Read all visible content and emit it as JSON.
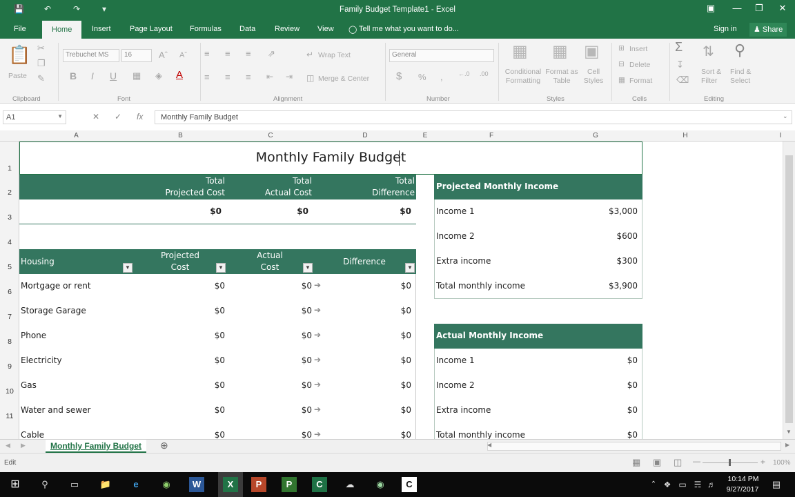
{
  "window": {
    "title": "Family Budget Template1 - Excel"
  },
  "ribbon_tabs": [
    "File",
    "Home",
    "Insert",
    "Page Layout",
    "Formulas",
    "Data",
    "Review",
    "View"
  ],
  "tell_me": "Tell me what you want to do...",
  "account": {
    "sign_in": "Sign in",
    "share": "Share"
  },
  "ribbon": {
    "paste": "Paste",
    "font_name": "Trebuchet MS",
    "font_size": "16",
    "wrap_text": "Wrap Text",
    "merge_center": "Merge & Center",
    "number_format": "General",
    "conditional_formatting": [
      "Conditional",
      "Formatting"
    ],
    "format_as_table": [
      "Format as",
      "Table"
    ],
    "cell_styles": [
      "Cell",
      "Styles"
    ],
    "insert": "Insert",
    "delete": "Delete",
    "format": "Format",
    "sort_filter": [
      "Sort &",
      "Filter"
    ],
    "find_select": [
      "Find &",
      "Select"
    ],
    "groups": {
      "clipboard": "Clipboard",
      "font": "Font",
      "alignment": "Alignment",
      "number": "Number",
      "styles": "Styles",
      "cells": "Cells",
      "editing": "Editing"
    }
  },
  "formula_bar": {
    "name_box": "A1",
    "content": "Monthly Family Budget"
  },
  "columns": [
    "A",
    "B",
    "C",
    "D",
    "E",
    "F",
    "G",
    "H",
    "I"
  ],
  "rows": [
    "1",
    "2",
    "3",
    "4",
    "5",
    "6",
    "7",
    "8",
    "9",
    "10",
    "11"
  ],
  "sheet": {
    "title": "Monthly Family Budget",
    "totals_headers": [
      [
        "Total",
        "Projected Cost"
      ],
      [
        "Total",
        "Actual Cost"
      ],
      [
        "Total",
        "Difference"
      ]
    ],
    "totals_values": [
      "$0",
      "$0",
      "$0"
    ],
    "housing_headers": {
      "category": "Housing",
      "projected": [
        "Projected",
        "Cost"
      ],
      "actual": [
        "Actual",
        "Cost"
      ],
      "difference": "Difference"
    },
    "housing_rows": [
      {
        "item": "Mortgage or rent",
        "projected": "$0",
        "actual": "$0",
        "difference": "$0"
      },
      {
        "item": "Storage Garage",
        "projected": "$0",
        "actual": "$0",
        "difference": "$0"
      },
      {
        "item": "Phone",
        "projected": "$0",
        "actual": "$0",
        "difference": "$0"
      },
      {
        "item": "Electricity",
        "projected": "$0",
        "actual": "$0",
        "difference": "$0"
      },
      {
        "item": "Gas",
        "projected": "$0",
        "actual": "$0",
        "difference": "$0"
      },
      {
        "item": "Water and sewer",
        "projected": "$0",
        "actual": "$0",
        "difference": "$0"
      },
      {
        "item": "Cable",
        "projected": "$0",
        "actual": "$0",
        "difference": "$0"
      }
    ],
    "projected_income": {
      "header": "Projected Monthly Income",
      "rows": [
        {
          "label": "Income 1",
          "value": "$3,000"
        },
        {
          "label": "Income 2",
          "value": "$600"
        },
        {
          "label": "Extra income",
          "value": "$300"
        },
        {
          "label": "Total monthly income",
          "value": "$3,900"
        }
      ]
    },
    "actual_income": {
      "header": "Actual Monthly Income",
      "rows": [
        {
          "label": "Income 1",
          "value": "$0"
        },
        {
          "label": "Income 2",
          "value": "$0"
        },
        {
          "label": "Extra income",
          "value": "$0"
        },
        {
          "label": "Total monthly income",
          "value": "$0"
        }
      ]
    }
  },
  "sheet_tab": "Monthly Family Budget",
  "status": {
    "mode": "Edit",
    "zoom": "100%"
  },
  "taskbar": {
    "time": "10:14 PM",
    "date": "9/27/2017"
  },
  "colors": {
    "excel_green": "#217346",
    "table_header": "#34765f"
  }
}
